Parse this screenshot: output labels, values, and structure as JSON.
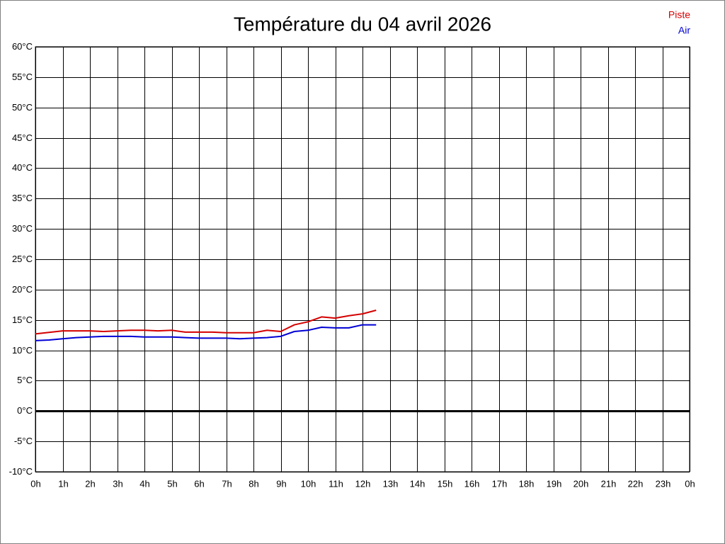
{
  "chart_data": {
    "type": "line",
    "title": "Température du 04 avril 2026",
    "x": [
      0,
      0.5,
      1,
      1.5,
      2,
      2.5,
      3,
      3.5,
      4,
      4.5,
      5,
      5.5,
      6,
      6.5,
      7,
      7.5,
      8,
      8.5,
      9,
      9.5,
      10,
      10.5,
      11,
      11.5,
      12,
      12.5
    ],
    "series": [
      {
        "name": "Piste",
        "color": "#d40000",
        "values": [
          12.7,
          12.95,
          13.2,
          13.2,
          13.2,
          13.1,
          13.2,
          13.3,
          13.3,
          13.2,
          13.3,
          13.0,
          13.0,
          13.0,
          12.9,
          12.9,
          12.9,
          13.3,
          13.1,
          14.2,
          14.7,
          15.5,
          15.3,
          15.7,
          16.0,
          16.6
        ]
      },
      {
        "name": "Air",
        "color": "#0000d4",
        "values": [
          11.6,
          11.7,
          11.9,
          12.1,
          12.2,
          12.3,
          12.3,
          12.3,
          12.2,
          12.2,
          12.2,
          12.1,
          12.0,
          12.0,
          12.0,
          11.9,
          12.0,
          12.1,
          12.3,
          13.1,
          13.3,
          13.8,
          13.7,
          13.7,
          14.2,
          14.2
        ]
      }
    ],
    "xlim": [
      0,
      24
    ],
    "xticks": [
      {
        "value": 0,
        "label": "0h"
      },
      {
        "value": 1,
        "label": "1h"
      },
      {
        "value": 2,
        "label": "2h"
      },
      {
        "value": 3,
        "label": "3h"
      },
      {
        "value": 4,
        "label": "4h"
      },
      {
        "value": 5,
        "label": "5h"
      },
      {
        "value": 6,
        "label": "6h"
      },
      {
        "value": 7,
        "label": "7h"
      },
      {
        "value": 8,
        "label": "8h"
      },
      {
        "value": 9,
        "label": "9h"
      },
      {
        "value": 10,
        "label": "10h"
      },
      {
        "value": 11,
        "label": "11h"
      },
      {
        "value": 12,
        "label": "12h"
      },
      {
        "value": 13,
        "label": "13h"
      },
      {
        "value": 14,
        "label": "14h"
      },
      {
        "value": 15,
        "label": "15h"
      },
      {
        "value": 16,
        "label": "16h"
      },
      {
        "value": 17,
        "label": "17h"
      },
      {
        "value": 18,
        "label": "18h"
      },
      {
        "value": 19,
        "label": "19h"
      },
      {
        "value": 20,
        "label": "20h"
      },
      {
        "value": 21,
        "label": "21h"
      },
      {
        "value": 22,
        "label": "22h"
      },
      {
        "value": 23,
        "label": "23h"
      },
      {
        "value": 24,
        "label": "0h"
      }
    ],
    "ylim": [
      -10,
      60
    ],
    "yticks": [
      {
        "value": 60,
        "label": "60°C"
      },
      {
        "value": 55,
        "label": "55°C"
      },
      {
        "value": 50,
        "label": "50°C"
      },
      {
        "value": 45,
        "label": "45°C"
      },
      {
        "value": 40,
        "label": "40°C"
      },
      {
        "value": 35,
        "label": "35°C"
      },
      {
        "value": 30,
        "label": "30°C"
      },
      {
        "value": 25,
        "label": "25°C"
      },
      {
        "value": 20,
        "label": "20°C"
      },
      {
        "value": 15,
        "label": "15°C"
      },
      {
        "value": 10,
        "label": "10°C"
      },
      {
        "value": 5,
        "label": "5°C"
      },
      {
        "value": 0,
        "label": "0°C"
      },
      {
        "value": -5,
        "label": "-5°C"
      },
      {
        "value": -10,
        "label": "-10°C"
      }
    ],
    "grid": true,
    "legend": "top-right"
  }
}
